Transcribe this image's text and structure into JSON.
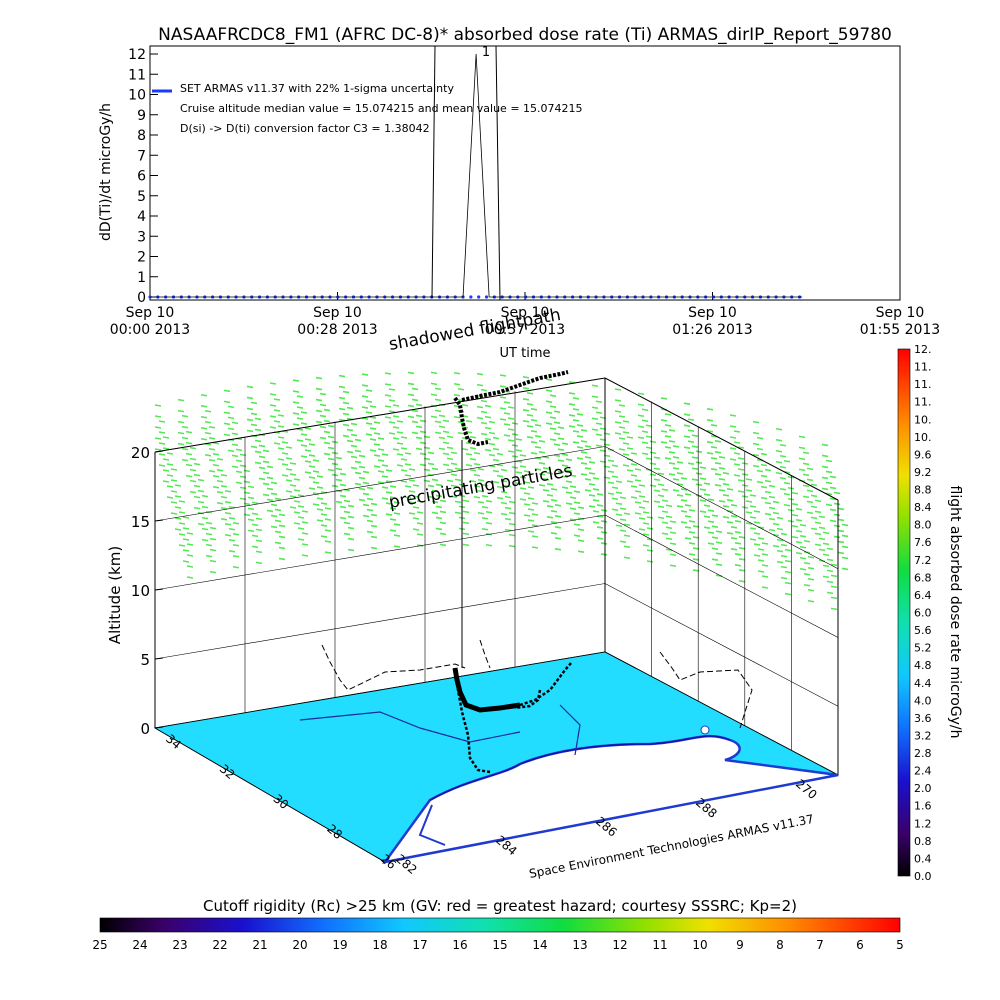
{
  "title": "NASAAFRCDC8_FM1 (AFRC DC-8)* absorbed dose rate (Ti) ARMAS_dirIP_Report_59780",
  "top_chart": {
    "ylabel": "dD(Ti)/dt microGy/h",
    "xlabel": "UT time",
    "legend": [
      "SET ARMAS v11.37 with 22% 1-sigma uncertainty",
      "Cruise altitude median value = 15.074215 and mean value = 15.074215",
      "D(si) -> D(ti) conversion factor C3 = 1.38042"
    ],
    "legend_color": "#1a3aff",
    "y_ticks": [
      "0",
      "1",
      "2",
      "3",
      "4",
      "5",
      "6",
      "7",
      "8",
      "9",
      "10",
      "11",
      "12"
    ],
    "x_ticks": [
      {
        "l1": "Sep 10",
        "l2": "00:00 2013"
      },
      {
        "l1": "Sep 10",
        "l2": "00:28 2013"
      },
      {
        "l1": "Sep 10",
        "l2": "00:57 2013"
      },
      {
        "l1": "Sep 10",
        "l2": "01:26 2013"
      },
      {
        "l1": "Sep 10",
        "l2": "01:55 2013"
      }
    ],
    "spike_marker": "1"
  },
  "chart_data": [
    {
      "type": "line",
      "title": "NASAAFRCDC8_FM1 (AFRC DC-8)* absorbed dose rate (Ti) ARMAS_dirIP_Report_59780",
      "xlabel": "UT time",
      "ylabel": "dD(Ti)/dt microGy/h",
      "ylim": [
        0,
        12
      ],
      "x_range": [
        "Sep 10 00:00 2013",
        "Sep 10 01:55 2013"
      ],
      "series": [
        {
          "name": "SET ARMAS v11.37 with 22% 1-sigma uncertainty",
          "x_min": [
            0,
            4,
            8,
            12,
            16,
            20,
            24,
            28,
            32,
            36,
            40,
            44,
            48,
            50,
            52,
            56,
            60,
            64,
            68,
            72,
            76,
            80,
            84,
            88,
            92,
            96,
            100
          ],
          "y": [
            0,
            0,
            0,
            0,
            0,
            0,
            0,
            0,
            0,
            0,
            0,
            0,
            0,
            12,
            0,
            0,
            0,
            0,
            0,
            0,
            0,
            0,
            0,
            0,
            0,
            0,
            0
          ]
        }
      ]
    },
    {
      "type": "scatter",
      "subtype": "3d-flight-path",
      "zlabel": "Altitude (km)",
      "z_ticks": [
        "0",
        "5",
        "10",
        "15",
        "20"
      ],
      "lat_ticks": [
        "34",
        "32",
        "30",
        "28",
        "26"
      ],
      "lon_ticks": [
        "282",
        "284",
        "286",
        "288",
        "270"
      ],
      "annotations": [
        "shadowed flightpath",
        "precipitating particles",
        "Space Environment Technologies ARMAS v11.37"
      ]
    }
  ],
  "colorbar_right": {
    "label": "flight absorbed dose rate microGy/h",
    "ticks": [
      "0.0",
      "0.4",
      "0.8",
      "1.2",
      "1.6",
      "2.0",
      "2.4",
      "2.8",
      "3.2",
      "3.6",
      "4.0",
      "4.4",
      "4.8",
      "5.2",
      "5.6",
      "6.0",
      "6.4",
      "6.8",
      "7.2",
      "7.6",
      "8.0",
      "8.4",
      "8.8",
      "9.2",
      "9.6",
      "10.",
      "10.",
      "11.",
      "11.",
      "11.",
      "12."
    ]
  },
  "colorbar_bottom": {
    "label": "Cutoff rigidity (Rc) >25 km (GV: red = greatest hazard; courtesy SSSRC; Kp=2)",
    "ticks": [
      "25",
      "24",
      "23",
      "22",
      "21",
      "20",
      "19",
      "18",
      "17",
      "16",
      "15",
      "14",
      "13",
      "12",
      "11",
      "10",
      "9",
      "8",
      "7",
      "6",
      "5"
    ]
  },
  "plot3d": {
    "zlabel": "Altitude (km)",
    "z_ticks": [
      "0",
      "5",
      "10",
      "15",
      "20"
    ],
    "lat_ticks": [
      "34",
      "32",
      "30",
      "28",
      "26"
    ],
    "lon_ticks": [
      "282",
      "284",
      "286",
      "288",
      "270"
    ],
    "annotation_shadow": "shadowed flightpath",
    "annotation_precip": "precipitating particles",
    "credit": "Space Environment Technologies ARMAS v11.37",
    "map_color": "#22ddff",
    "arrow_color": "#55e855"
  }
}
